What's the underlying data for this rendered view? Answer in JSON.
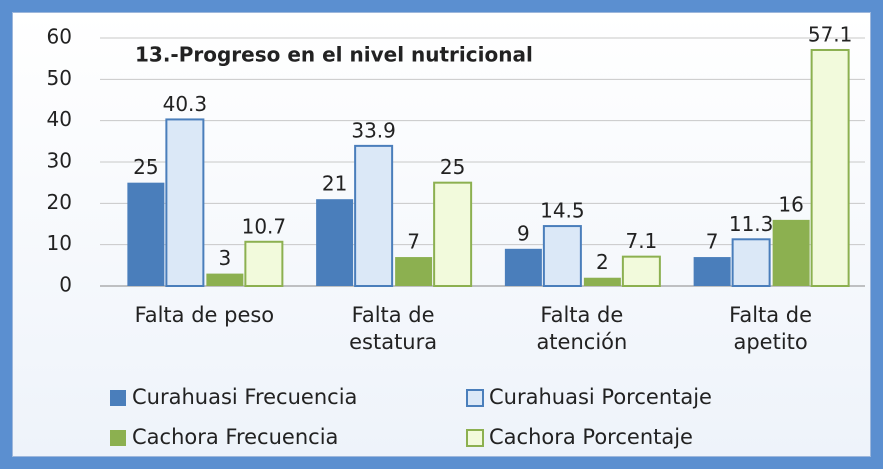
{
  "chart_data": {
    "type": "bar",
    "title": "13.-Progreso en el nivel nutricional",
    "categories": [
      "Falta de peso",
      "Falta de estatura",
      "Falta de atención",
      "Falta de apetito"
    ],
    "series": [
      {
        "name": "Curahuasi Frecuencia",
        "color": "#4a7ebb",
        "values": [
          25,
          21,
          9,
          7
        ]
      },
      {
        "name": "Curahuasi Porcentaje",
        "color": "#dbe8f7",
        "border": "#4a7ebb",
        "values": [
          40.3,
          33.9,
          14.5,
          11.3
        ]
      },
      {
        "name": "Cachora Frecuencia",
        "color": "#8cb050",
        "values": [
          3,
          7,
          2,
          16
        ]
      },
      {
        "name": "Cachora Porcentaje",
        "color": "#f2fadc",
        "border": "#8cb050",
        "values": [
          10.7,
          25,
          7.1,
          57.1
        ]
      }
    ],
    "ylim": [
      0,
      60
    ],
    "yticks": [
      0,
      10,
      20,
      30,
      40,
      50,
      60
    ],
    "grid": true
  }
}
